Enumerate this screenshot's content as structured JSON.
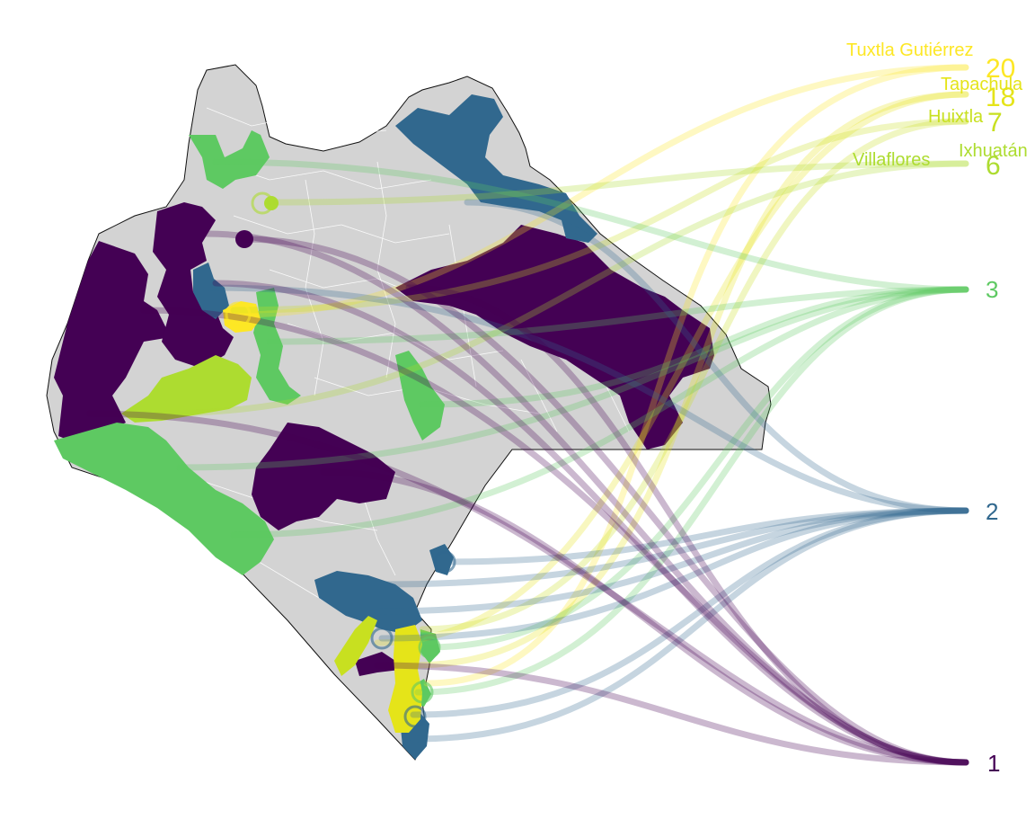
{
  "colors": {
    "tier_1": "#440154",
    "tier_2": "#31688e",
    "tier_3": "#5ec962",
    "tier_6": "#addc30",
    "tier_7": "#c8e020",
    "tier_18": "#e5e419",
    "tier_20": "#fde725",
    "base_map": "#d3d3d3",
    "borders": "#ffffff"
  },
  "labels": {
    "tiers": [
      {
        "value": "20",
        "color": "#fde725"
      },
      {
        "value": "18",
        "color": "#e5e419"
      },
      {
        "value": "7",
        "color": "#c8e020"
      },
      {
        "value": "6",
        "color": "#addc30"
      },
      {
        "value": "3",
        "color": "#5ec962"
      },
      {
        "value": "2",
        "color": "#31688e"
      },
      {
        "value": "1",
        "color": "#440154"
      }
    ],
    "municipalities": [
      {
        "name": "Tuxtla Gutiérrez",
        "color": "#fde725"
      },
      {
        "name": "Tapachula",
        "color": "#e5e419"
      },
      {
        "name": "Huixtla",
        "color": "#c8e020"
      },
      {
        "name": "Ixhuatán",
        "color": "#addc30"
      },
      {
        "name": "Villaflores",
        "color": "#addc30"
      }
    ]
  }
}
